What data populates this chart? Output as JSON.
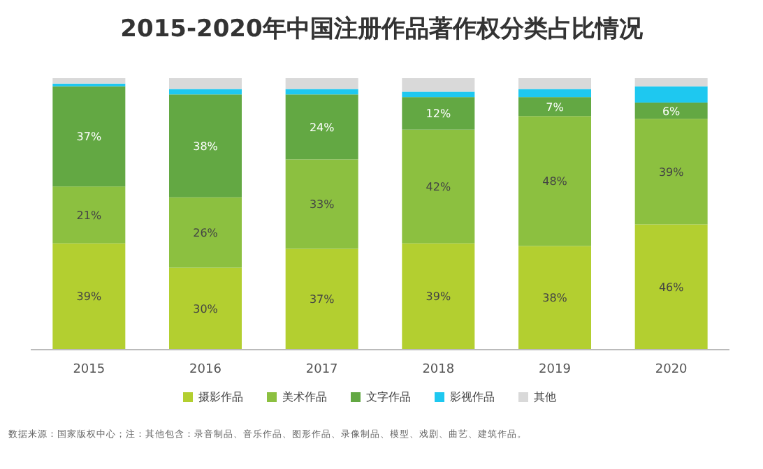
{
  "chart_data": {
    "type": "bar",
    "stacked": true,
    "legend": "bottom",
    "title": "2015-2020年中国注册作品著作权分类占比情况",
    "categories": [
      "2015",
      "2016",
      "2017",
      "2018",
      "2019",
      "2020"
    ],
    "series": [
      {
        "name": "摄影作品",
        "color": "#b3cf30",
        "values": [
          39,
          30,
          37,
          39,
          38,
          46
        ],
        "value_labels": [
          "39%",
          "30%",
          "37%",
          "39%",
          "38%",
          "46%"
        ]
      },
      {
        "name": "美术作品",
        "color": "#8cc040",
        "values": [
          21,
          26,
          33,
          42,
          48,
          39
        ],
        "value_labels": [
          "21%",
          "26%",
          "33%",
          "42%",
          "48%",
          "39%"
        ]
      },
      {
        "name": "文字作品",
        "color": "#63a843",
        "values": [
          37,
          38,
          24,
          12,
          7,
          6
        ],
        "value_labels": [
          "37%",
          "38%",
          "24%",
          "12%",
          "7%",
          "6%"
        ]
      },
      {
        "name": "影视作品",
        "color": "#1ec8f0",
        "values": [
          1,
          2,
          2,
          2,
          3,
          6
        ]
      },
      {
        "name": "其他",
        "color": "#d9d9d9",
        "values": [
          2,
          4,
          4,
          5,
          4,
          3
        ]
      }
    ],
    "annotations": [
      "数据来源：国家版权中心；注：其他包含：录音制品、音乐作品、图形作品、录像制品、模型、戏剧、曲艺、建筑作品。"
    ]
  }
}
